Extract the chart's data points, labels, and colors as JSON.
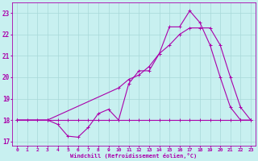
{
  "background_color": "#c8f0f0",
  "grid_color": "#a8d8d8",
  "line_color": "#aa00aa",
  "xlim": [
    -0.5,
    23.5
  ],
  "ylim": [
    16.8,
    23.5
  ],
  "yticks": [
    17,
    18,
    19,
    20,
    21,
    22,
    23
  ],
  "xticks": [
    0,
    1,
    2,
    3,
    4,
    5,
    6,
    7,
    8,
    9,
    10,
    11,
    12,
    13,
    14,
    15,
    16,
    17,
    18,
    19,
    20,
    21,
    22,
    23
  ],
  "xlabel": "Windchill (Refroidissement éolien,°C)",
  "line1_x": [
    0,
    1,
    2,
    3,
    4,
    5,
    6,
    7,
    8,
    9,
    10,
    11,
    12,
    13,
    14,
    15,
    16,
    17,
    18,
    19,
    20,
    21,
    22,
    23
  ],
  "line1_y": [
    18.0,
    18.0,
    18.0,
    18.0,
    18.0,
    18.0,
    18.0,
    18.0,
    18.0,
    18.0,
    18.0,
    18.0,
    18.0,
    18.0,
    18.0,
    18.0,
    18.0,
    18.0,
    18.0,
    18.0,
    18.0,
    18.0,
    18.0,
    18.0
  ],
  "line2_x": [
    0,
    3,
    4,
    5,
    6,
    7,
    8,
    9,
    10,
    11,
    12,
    13,
    14,
    15,
    16,
    17,
    18,
    19,
    20,
    21,
    22,
    23
  ],
  "line2_y": [
    18.0,
    18.0,
    17.8,
    17.25,
    17.2,
    17.65,
    18.3,
    18.5,
    18.0,
    19.7,
    20.3,
    20.3,
    21.1,
    22.35,
    22.35,
    23.1,
    22.55,
    21.5,
    20.0,
    18.6,
    18.0,
    18.0
  ],
  "line3_x": [
    0,
    3,
    10,
    11,
    12,
    13,
    14,
    15,
    16,
    17,
    18,
    19,
    20,
    21,
    22,
    23
  ],
  "line3_y": [
    18.0,
    18.0,
    19.5,
    19.9,
    20.1,
    20.5,
    21.1,
    21.5,
    22.0,
    22.3,
    22.3,
    22.3,
    21.5,
    20.0,
    18.6,
    18.0
  ]
}
